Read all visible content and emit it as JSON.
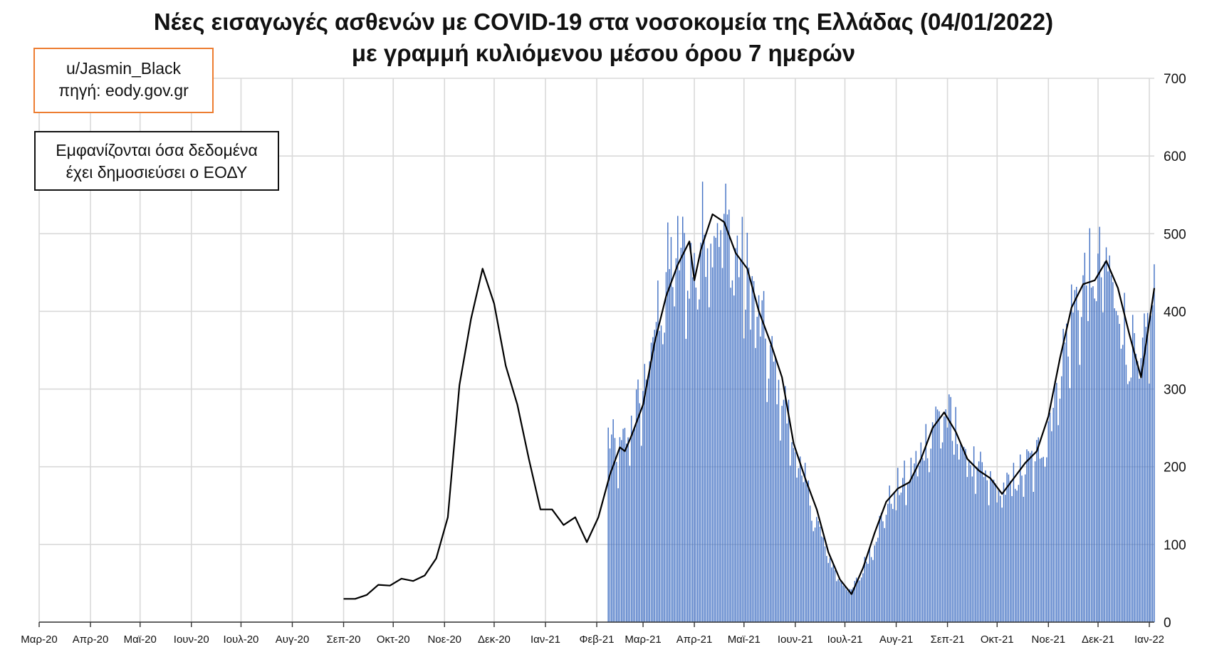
{
  "header": {
    "title_line1": "Νέες εισαγωγές ασθενών με COVID-19 στα νοσοκομεία της Ελλάδας (04/01/2022)",
    "title_line2": "με γραμμή κυλιόμενου μέσου όρου 7 ημερών"
  },
  "source_box": {
    "line1": "u/Jasmin_Black",
    "line2": "πηγή: eody.gov.gr",
    "border_color": "#ED7D31"
  },
  "note_box": {
    "line1": "Εμφανίζονται όσα δεδομένα",
    "line2": "έχει δημοσιεύσει ο ΕΟΔΥ"
  },
  "chart_data": {
    "type": "bar",
    "ylim": [
      0,
      700
    ],
    "y_ticks": [
      "0",
      "100",
      "200",
      "300",
      "400",
      "500",
      "600",
      "700"
    ],
    "x_tick_labels": [
      "Μαρ-20",
      "Απρ-20",
      "Μαϊ-20",
      "Ιουν-20",
      "Ιουλ-20",
      "Αυγ-20",
      "Σεπ-20",
      "Οκτ-20",
      "Νοε-20",
      "Δεκ-20",
      "Ιαν-21",
      "Φεβ-21",
      "Μαρ-21",
      "Απρ-21",
      "Μαϊ-21",
      "Ιουν-21",
      "Ιουλ-21",
      "Αυγ-21",
      "Σεπ-21",
      "Οκτ-21",
      "Νοε-21",
      "Δεκ-21",
      "Ιαν-22"
    ],
    "x_start": "2020-03-01",
    "x_end": "2022-01-04",
    "grid": true,
    "bar_color": "#4472C4",
    "line_color": "#000000",
    "daily_admissions": {
      "start_date": "2021-02-08",
      "end_date": "2022-01-04",
      "anchor_values": [
        [
          "2021-02-08",
          240
        ],
        [
          "2021-02-15",
          215
        ],
        [
          "2021-02-22",
          260
        ],
        [
          "2021-03-01",
          300
        ],
        [
          "2021-03-08",
          385
        ],
        [
          "2021-03-15",
          450
        ],
        [
          "2021-03-22",
          480
        ],
        [
          "2021-03-29",
          470
        ],
        [
          "2021-04-01",
          450
        ],
        [
          "2021-04-05",
          500
        ],
        [
          "2021-04-12",
          530
        ],
        [
          "2021-04-19",
          520
        ],
        [
          "2021-04-26",
          480
        ],
        [
          "2021-05-03",
          450
        ],
        [
          "2021-05-10",
          400
        ],
        [
          "2021-05-17",
          340
        ],
        [
          "2021-05-24",
          300
        ],
        [
          "2021-05-31",
          230
        ],
        [
          "2021-06-07",
          180
        ],
        [
          "2021-06-14",
          130
        ],
        [
          "2021-06-21",
          85
        ],
        [
          "2021-06-28",
          55
        ],
        [
          "2021-07-05",
          40
        ],
        [
          "2021-07-12",
          70
        ],
        [
          "2021-07-19",
          110
        ],
        [
          "2021-07-26",
          150
        ],
        [
          "2021-08-02",
          175
        ],
        [
          "2021-08-09",
          190
        ],
        [
          "2021-08-16",
          220
        ],
        [
          "2021-08-23",
          260
        ],
        [
          "2021-08-30",
          270
        ],
        [
          "2021-09-06",
          250
        ],
        [
          "2021-09-13",
          215
        ],
        [
          "2021-09-20",
          195
        ],
        [
          "2021-09-27",
          180
        ],
        [
          "2021-10-04",
          170
        ],
        [
          "2021-10-11",
          185
        ],
        [
          "2021-10-18",
          200
        ],
        [
          "2021-10-25",
          215
        ],
        [
          "2021-11-01",
          260
        ],
        [
          "2021-11-08",
          330
        ],
        [
          "2021-11-15",
          400
        ],
        [
          "2021-11-22",
          440
        ],
        [
          "2021-11-29",
          450
        ],
        [
          "2021-12-06",
          460
        ],
        [
          "2021-12-13",
          420
        ],
        [
          "2021-12-20",
          360
        ],
        [
          "2021-12-27",
          320
        ],
        [
          "2022-01-04",
          440
        ]
      ]
    },
    "rolling_avg_7d": [
      [
        "2020-09-01",
        30
      ],
      [
        "2020-09-08",
        30
      ],
      [
        "2020-09-15",
        35
      ],
      [
        "2020-09-22",
        48
      ],
      [
        "2020-09-29",
        47
      ],
      [
        "2020-10-06",
        56
      ],
      [
        "2020-10-13",
        53
      ],
      [
        "2020-10-20",
        60
      ],
      [
        "2020-10-27",
        82
      ],
      [
        "2020-11-03",
        135
      ],
      [
        "2020-11-10",
        305
      ],
      [
        "2020-11-17",
        390
      ],
      [
        "2020-11-24",
        455
      ],
      [
        "2020-12-01",
        410
      ],
      [
        "2020-12-08",
        330
      ],
      [
        "2020-12-15",
        280
      ],
      [
        "2020-12-22",
        210
      ],
      [
        "2020-12-29",
        145
      ],
      [
        "2021-01-05",
        145
      ],
      [
        "2021-01-12",
        125
      ],
      [
        "2021-01-19",
        135
      ],
      [
        "2021-01-26",
        103
      ],
      [
        "2021-02-02",
        135
      ],
      [
        "2021-02-09",
        190
      ],
      [
        "2021-02-15",
        225
      ],
      [
        "2021-02-18",
        220
      ],
      [
        "2021-02-22",
        240
      ],
      [
        "2021-03-01",
        280
      ],
      [
        "2021-03-08",
        360
      ],
      [
        "2021-03-15",
        420
      ],
      [
        "2021-03-22",
        460
      ],
      [
        "2021-03-29",
        490
      ],
      [
        "2021-04-01",
        440
      ],
      [
        "2021-04-05",
        480
      ],
      [
        "2021-04-12",
        525
      ],
      [
        "2021-04-19",
        515
      ],
      [
        "2021-04-26",
        475
      ],
      [
        "2021-05-03",
        455
      ],
      [
        "2021-05-10",
        400
      ],
      [
        "2021-05-17",
        360
      ],
      [
        "2021-05-24",
        315
      ],
      [
        "2021-05-31",
        230
      ],
      [
        "2021-06-07",
        185
      ],
      [
        "2021-06-14",
        145
      ],
      [
        "2021-06-21",
        90
      ],
      [
        "2021-06-28",
        55
      ],
      [
        "2021-07-05",
        36
      ],
      [
        "2021-07-12",
        70
      ],
      [
        "2021-07-19",
        115
      ],
      [
        "2021-07-26",
        155
      ],
      [
        "2021-08-02",
        172
      ],
      [
        "2021-08-09",
        180
      ],
      [
        "2021-08-16",
        210
      ],
      [
        "2021-08-23",
        250
      ],
      [
        "2021-08-30",
        270
      ],
      [
        "2021-09-06",
        245
      ],
      [
        "2021-09-13",
        210
      ],
      [
        "2021-09-20",
        195
      ],
      [
        "2021-09-27",
        185
      ],
      [
        "2021-10-04",
        165
      ],
      [
        "2021-10-11",
        185
      ],
      [
        "2021-10-18",
        205
      ],
      [
        "2021-10-25",
        220
      ],
      [
        "2021-11-01",
        265
      ],
      [
        "2021-11-08",
        340
      ],
      [
        "2021-11-15",
        405
      ],
      [
        "2021-11-22",
        435
      ],
      [
        "2021-11-29",
        440
      ],
      [
        "2021-12-06",
        465
      ],
      [
        "2021-12-13",
        430
      ],
      [
        "2021-12-20",
        370
      ],
      [
        "2021-12-27",
        315
      ],
      [
        "2022-01-04",
        430
      ]
    ]
  }
}
